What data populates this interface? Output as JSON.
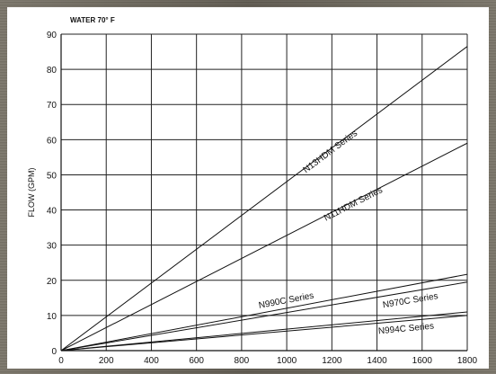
{
  "chart_data": {
    "type": "line",
    "annotation": "WATER 70° F",
    "xlabel": "",
    "ylabel": "FLOW (GPM)",
    "xlim": [
      0,
      1800
    ],
    "ylim": [
      0,
      90
    ],
    "x_ticks": [
      "0",
      "200",
      "400",
      "600",
      "800",
      "1000",
      "1200",
      "1400",
      "1600",
      "1800"
    ],
    "y_ticks": [
      "0",
      "10",
      "20",
      "30",
      "40",
      "50",
      "60",
      "70",
      "80",
      "90"
    ],
    "grid": true,
    "series": [
      {
        "name": "N13HDM Series",
        "x": [
          0,
          1800
        ],
        "y": [
          0,
          86.5
        ],
        "label_x": 1200,
        "label_y": 56,
        "angle_ref": [
          900,
          1500
        ]
      },
      {
        "name": "N11HDM Series",
        "x": [
          0,
          1800
        ],
        "y": [
          0,
          59
        ],
        "label_x": 1300,
        "label_y": 41,
        "angle_ref": [
          1000,
          1600
        ]
      },
      {
        "name": "N990C Series",
        "x": [
          0,
          1800
        ],
        "y": [
          0,
          21.7
        ],
        "label_x": 1000,
        "label_y": 13.5,
        "angle_ref": [
          700,
          1300
        ]
      },
      {
        "name": "N970C Series",
        "x": [
          0,
          1800
        ],
        "y": [
          0,
          19.5
        ],
        "label_x": 1550,
        "label_y": 13.5,
        "angle_ref": [
          1300,
          1800
        ]
      },
      {
        "name": "N994C Series",
        "x": [
          0,
          1800
        ],
        "y": [
          0,
          11
        ],
        "label_x": 1530,
        "label_y": 5.5,
        "angle_ref": [
          1300,
          1800
        ]
      },
      {
        "name": "",
        "x": [
          0,
          1800
        ],
        "y": [
          0,
          10
        ],
        "label_x": null,
        "label_y": null,
        "angle_ref": null
      }
    ]
  }
}
